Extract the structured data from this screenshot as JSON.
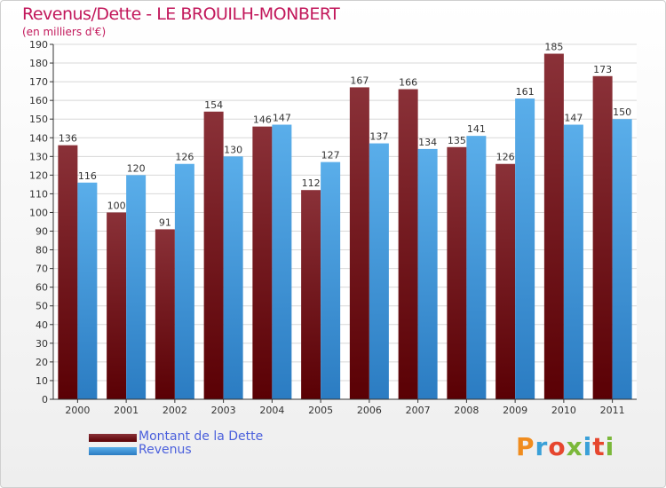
{
  "title": "Revenus/Dette - LE BROUILH-MONBERT",
  "subtitle": "(en milliers d'€)",
  "logo_text": "Proxiti",
  "colors": {
    "dette": "#6b0a0f",
    "revenus": "#3d8fd6",
    "title": "#c2185b",
    "legend_text": "#4a5fdc"
  },
  "chart_data": {
    "type": "bar",
    "title": "Revenus/Dette - LE BROUILH-MONBERT",
    "ylabel": "(en milliers d'€)",
    "categories": [
      "2000",
      "2001",
      "2002",
      "2003",
      "2004",
      "2005",
      "2006",
      "2007",
      "2008",
      "2009",
      "2010",
      "2011"
    ],
    "series": [
      {
        "name": "Montant de la Dette",
        "values": [
          136,
          100,
          91,
          154,
          146,
          112,
          167,
          166,
          135,
          126,
          185,
          173
        ]
      },
      {
        "name": "Revenus",
        "values": [
          116,
          120,
          126,
          130,
          147,
          127,
          137,
          134,
          141,
          161,
          147,
          150
        ]
      }
    ],
    "ylim": [
      0,
      190
    ],
    "yticks": [
      0,
      10,
      20,
      30,
      40,
      50,
      60,
      70,
      80,
      90,
      100,
      110,
      120,
      130,
      140,
      150,
      160,
      170,
      180,
      190
    ],
    "grid": true,
    "legend": "bottom-left"
  }
}
